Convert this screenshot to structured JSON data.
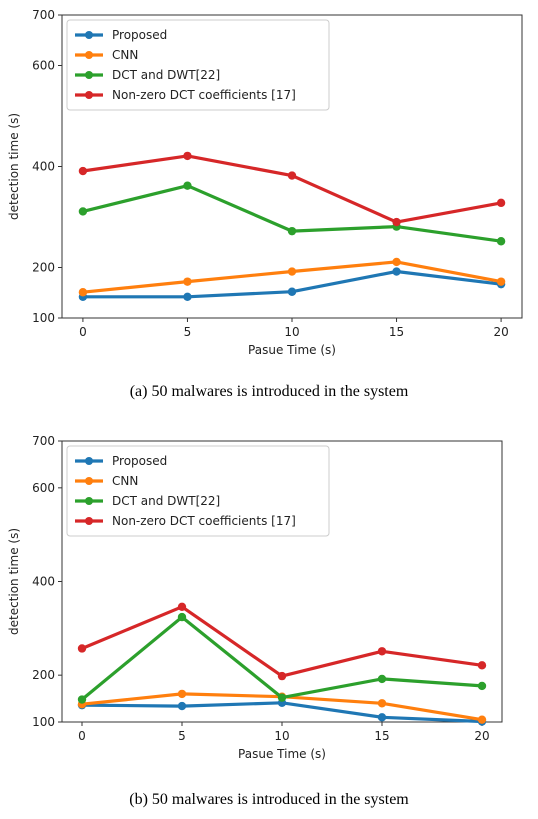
{
  "chart_data": [
    {
      "type": "line",
      "x": [
        0,
        5,
        10,
        15,
        20
      ],
      "xlabel": "Pasue Time (s)",
      "ylabel": "detection time (s)",
      "yticks": [
        100,
        200,
        400,
        600,
        700
      ],
      "ylim": [
        100,
        700
      ],
      "legend_position": "top-left",
      "caption": "(a)   50 malwares is introduced in the system",
      "series": [
        {
          "name": "Proposed",
          "color": "#1f77b4",
          "values": [
            142,
            142,
            152,
            192,
            167
          ]
        },
        {
          "name": "CNN",
          "color": "#ff7f0e",
          "values": [
            151,
            172,
            192,
            211,
            172
          ]
        },
        {
          "name": "DCT and DWT[22]",
          "color": "#2ca02c",
          "values": [
            311,
            362,
            272,
            281,
            252
          ]
        },
        {
          "name": "Non-zero DCT coefficients [17]",
          "color": "#d62728",
          "values": [
            391,
            421,
            382,
            290,
            328
          ]
        }
      ]
    },
    {
      "type": "line",
      "x": [
        0,
        5,
        10,
        15,
        20
      ],
      "xlabel": "Pasue Time (s)",
      "ylabel": "detection time (s)",
      "yticks": [
        100,
        200,
        400,
        600,
        700
      ],
      "ylim": [
        100,
        700
      ],
      "legend_position": "top-left",
      "caption": "(b)     50 malwares is introduced in the system",
      "series": [
        {
          "name": "Proposed",
          "color": "#1f77b4",
          "values": [
            136,
            134,
            141,
            110,
            101
          ]
        },
        {
          "name": "CNN",
          "color": "#ff7f0e",
          "values": [
            138,
            160,
            154,
            140,
            105
          ]
        },
        {
          "name": "DCT and DWT[22]",
          "color": "#2ca02c",
          "values": [
            148,
            324,
            152,
            192,
            177
          ]
        },
        {
          "name": "Non-zero DCT coefficients [17]",
          "color": "#d62728",
          "values": [
            257,
            346,
            198,
            251,
            221
          ]
        }
      ]
    }
  ]
}
